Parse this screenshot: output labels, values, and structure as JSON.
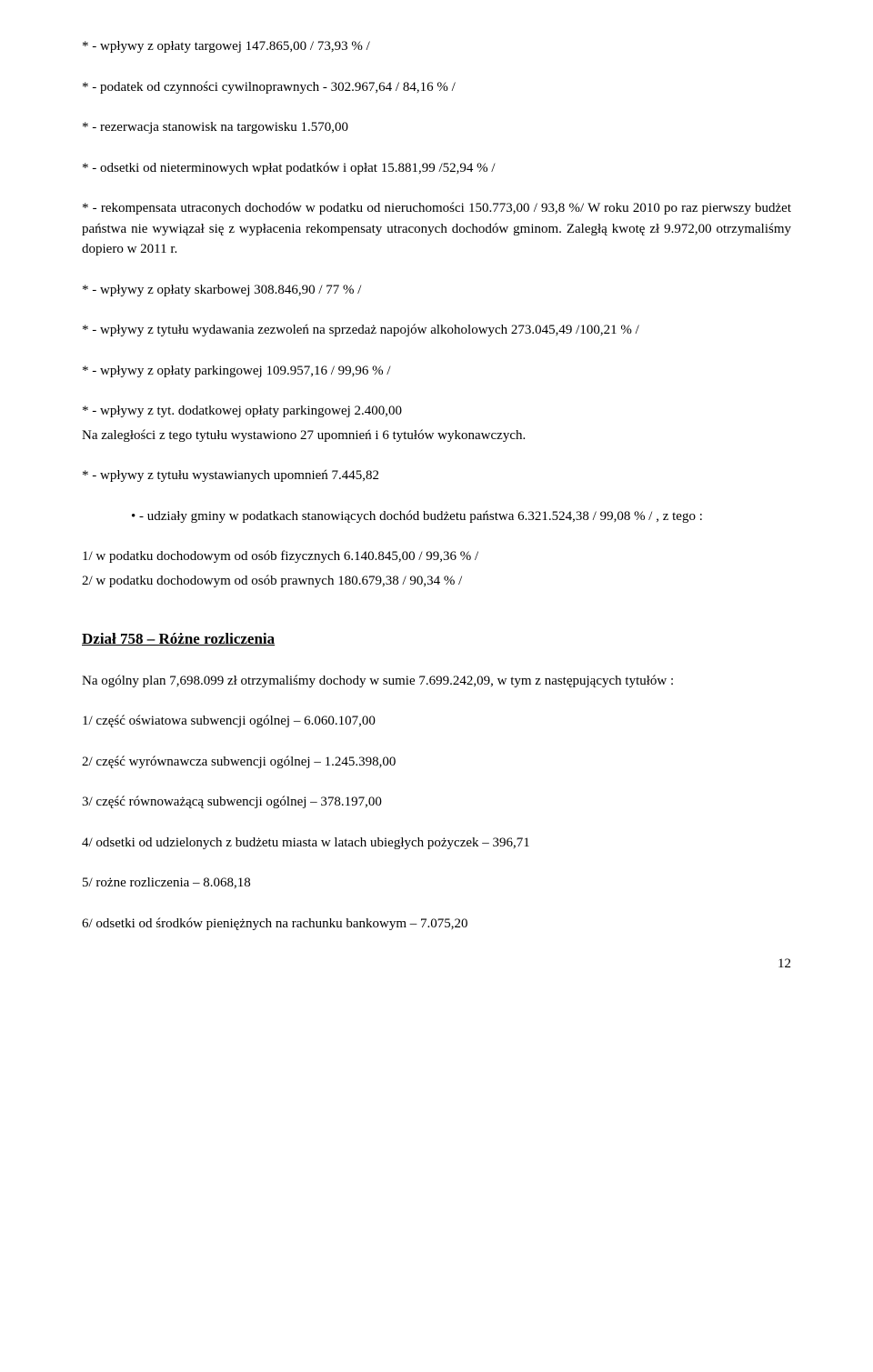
{
  "items": {
    "p1": "* - wpływy z opłaty targowej 147.865,00   / 73,93 % /",
    "p2": "* - podatek od czynności cywilnoprawnych - 302.967,64   / 84,16 % /",
    "p3": "* - rezerwacja stanowisk na targowisku 1.570,00",
    "p4": "* - odsetki od nieterminowych wpłat podatków i opłat 15.881,99   /52,94 % /",
    "p5": "* - rekompensata utraconych dochodów w podatku od nieruchomości 150.773,00   / 93,8 %/ W roku 2010 po raz pierwszy budżet państwa nie wywiązał się z wypłacenia rekompensaty utraconych dochodów gminom. Zaległą kwotę zł 9.972,00 otrzymaliśmy dopiero w 2011 r.",
    "p6": "* - wpływy z opłaty skarbowej 308.846,90   / 77 % /",
    "p7": "* - wpływy z tytułu wydawania zezwoleń na sprzedaż napojów alkoholowych 273.045,49   /100,21 % /",
    "p8": "* - wpływy z opłaty parkingowej 109.957,16   / 99,96 % /",
    "p9a": "* - wpływy z tyt. dodatkowej opłaty parkingowej 2.400,00",
    "p9b": "Na zaległości z tego tytułu wystawiono 27 upomnień i 6 tytułów wykonawczych.",
    "p10": "* - wpływy z tytułu wystawianych upomnień 7.445,82",
    "bullet1": "- udziały gminy w podatkach stanowiących dochód budżetu państwa 6.321.524,38   / 99,08 % / , z tego :",
    "p11a": "1/ w podatku dochodowym od osób fizycznych 6.140.845,00   / 99,36 % /",
    "p11b": "2/ w podatku dochodowym od osób prawnych 180.679,38   / 90,34 % /"
  },
  "section": {
    "heading": "Dział 758 – Różne rozliczenia",
    "intro": "Na ogólny plan 7,698.099 zł  otrzymaliśmy dochody w sumie 7.699.242,09, w tym z następujących tytułów :",
    "s1": "1/ część oświatowa subwencji ogólnej – 6.060.107,00",
    "s2": "2/ część wyrównawcza subwencji ogólnej – 1.245.398,00",
    "s3": "3/ część równoważącą subwencji ogólnej – 378.197,00",
    "s4": "4/ odsetki od udzielonych z budżetu miasta w latach ubiegłych pożyczek – 396,71",
    "s5": "5/ rożne rozliczenia – 8.068,18",
    "s6": "6/ odsetki od środków pieniężnych na rachunku bankowym – 7.075,20"
  },
  "pageNumber": "12"
}
